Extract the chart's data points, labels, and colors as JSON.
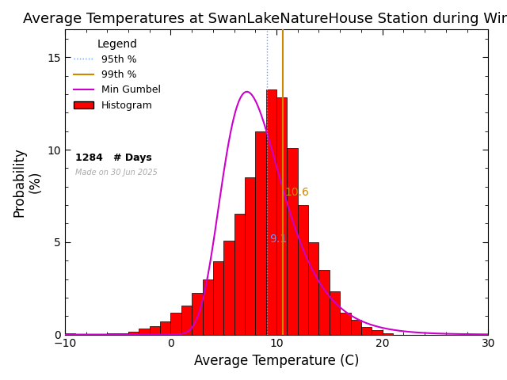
{
  "title": "Average Temperatures at SwanLakeNatureHouse Station during Winter",
  "xlabel": "Average Temperature (C)",
  "ylabel": "Probability\n(%)",
  "xlim": [
    -10,
    30
  ],
  "ylim": [
    0,
    16.5
  ],
  "x_ticks": [
    -10,
    0,
    10,
    20,
    30
  ],
  "y_ticks": [
    0,
    5,
    10,
    15
  ],
  "bin_edges": [
    -10,
    -9,
    -8,
    -7,
    -6,
    -5,
    -4,
    -3,
    -2,
    -1,
    0,
    1,
    2,
    3,
    4,
    5,
    6,
    7,
    8,
    9,
    10,
    11,
    12,
    13,
    14,
    15,
    16,
    17,
    18,
    19,
    20,
    21,
    22,
    23,
    24,
    25,
    26,
    27,
    28,
    29,
    30
  ],
  "bar_heights": [
    0.08,
    0.0,
    0.0,
    0.0,
    0.08,
    0.08,
    0.16,
    0.31,
    0.47,
    0.7,
    1.17,
    1.56,
    2.26,
    2.96,
    3.98,
    5.07,
    6.55,
    8.51,
    11.0,
    13.28,
    12.81,
    10.1,
    7.01,
    5.0,
    3.51,
    2.34,
    1.17,
    0.78,
    0.39,
    0.23,
    0.08,
    0.0,
    0.0,
    0.0,
    0.0,
    0.0,
    0.0,
    0.0,
    0.0,
    0.0
  ],
  "gumbel_mu": 7.2,
  "gumbel_beta": 2.8,
  "percentile_95": 9.1,
  "percentile_99": 10.6,
  "n_days": 1284,
  "bar_color": "#FF0000",
  "bar_edge_color": "#000000",
  "gumbel_color": "#CC00CC",
  "pct95_color": "#6699FF",
  "pct99_color": "#CC8800",
  "watermark": "Made on 30 Jun 2025",
  "watermark_color": "#AAAAAA",
  "title_fontsize": 13,
  "axis_fontsize": 12,
  "legend_fontsize": 9,
  "legend_title_fontsize": 10
}
